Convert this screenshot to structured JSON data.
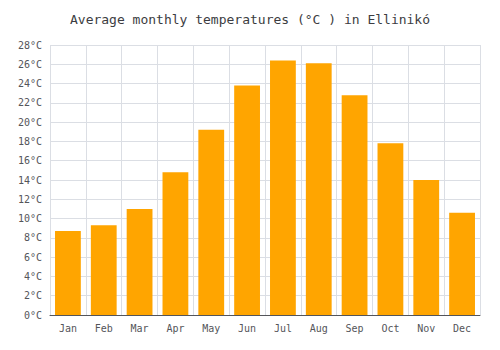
{
  "chart_data": {
    "type": "bar",
    "title": "Average monthly temperatures (°C ) in Ellinikó",
    "categories": [
      "Jan",
      "Feb",
      "Mar",
      "Apr",
      "May",
      "Jun",
      "Jul",
      "Aug",
      "Sep",
      "Oct",
      "Nov",
      "Dec"
    ],
    "values": [
      8.7,
      9.3,
      11.0,
      14.8,
      19.2,
      23.8,
      26.4,
      26.1,
      22.8,
      17.8,
      14.0,
      10.6
    ],
    "color": "#FFA500",
    "ylim": [
      0,
      28
    ],
    "yticks": [
      {
        "value": 0,
        "label": "0°C"
      },
      {
        "value": 2,
        "label": "2°C"
      },
      {
        "value": 4,
        "label": "4°C"
      },
      {
        "value": 6,
        "label": "6°C"
      },
      {
        "value": 8,
        "label": "8°C"
      },
      {
        "value": 10,
        "label": "10°C"
      },
      {
        "value": 12,
        "label": "12°C"
      },
      {
        "value": 14,
        "label": "14°C"
      },
      {
        "value": 16,
        "label": "16°C"
      },
      {
        "value": 18,
        "label": "18°C"
      },
      {
        "value": 20,
        "label": "20°C"
      },
      {
        "value": 22,
        "label": "22°C"
      },
      {
        "value": 24,
        "label": "24°C"
      },
      {
        "value": 26,
        "label": "26°C"
      },
      {
        "value": 28,
        "label": "28°C"
      }
    ],
    "grid": true
  }
}
